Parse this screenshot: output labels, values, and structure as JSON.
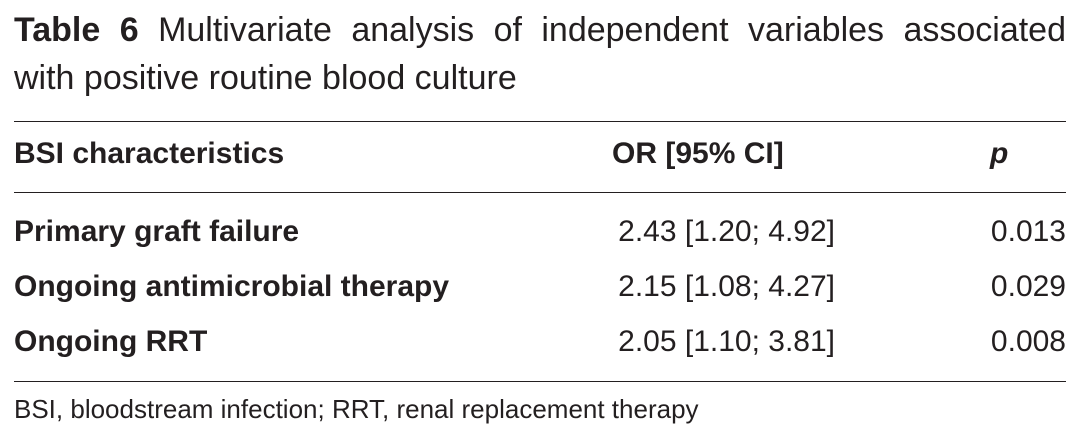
{
  "title": {
    "label": "Table 6",
    "text": "Multivariate analysis of independent variables associated with positive routine blood culture"
  },
  "table": {
    "columns": [
      "BSI characteristics",
      "OR [95% CI]",
      "p"
    ],
    "rows": [
      [
        "Primary graft failure",
        "2.43 [1.20; 4.92]",
        "0.013"
      ],
      [
        "Ongoing antimicrobial therapy",
        "2.15 [1.08; 4.27]",
        "0.029"
      ],
      [
        "Ongoing RRT",
        "2.05 [1.10; 3.81]",
        "0.008"
      ]
    ]
  },
  "footnote": "BSI, bloodstream infection; RRT, renal replacement therapy"
}
